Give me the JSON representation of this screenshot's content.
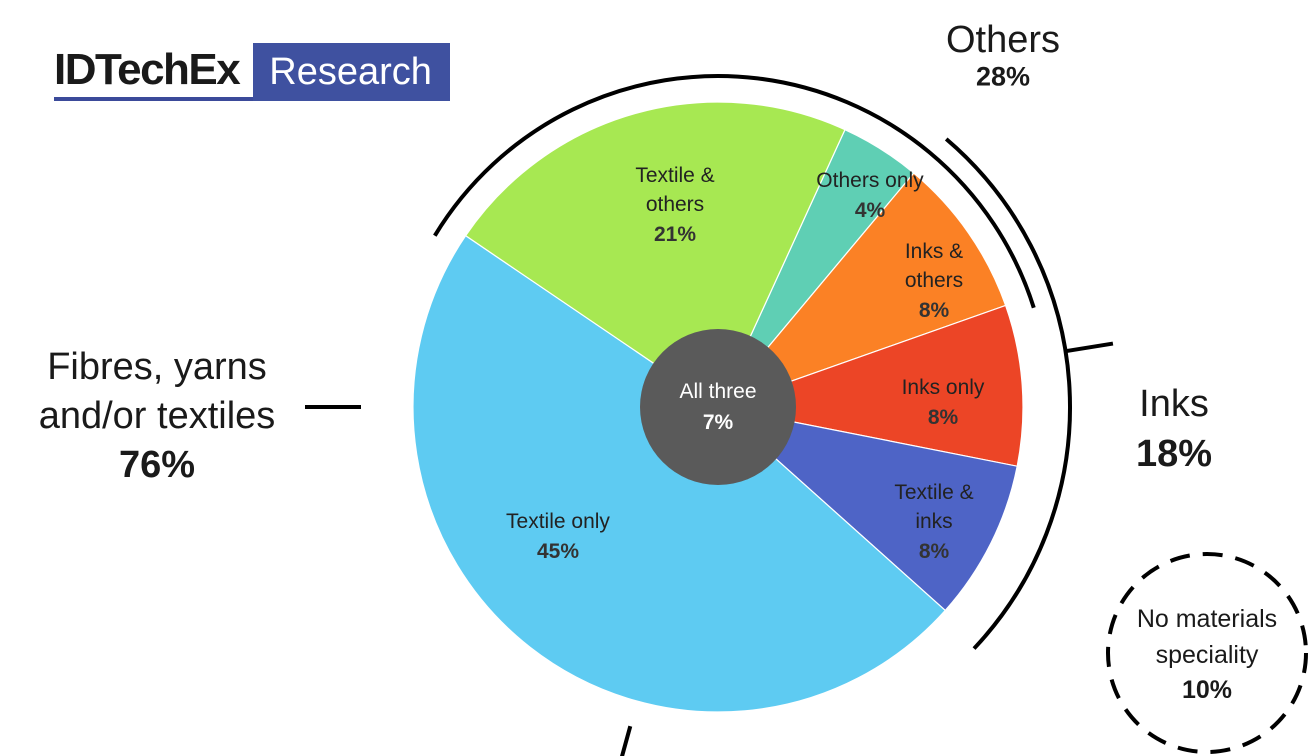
{
  "brand": {
    "name": "IDTechEx",
    "tag": "Research"
  },
  "chart_data": {
    "type": "pie",
    "slices": [
      {
        "label": "Textile only",
        "value": 45,
        "display": "45%",
        "color": "#5ecbf2"
      },
      {
        "label": "Textile & others",
        "value": 21,
        "display": "21%",
        "color": "#a7e852"
      },
      {
        "label": "Others only",
        "value": 4,
        "display": "4%",
        "color": "#5fcfb4"
      },
      {
        "label": "Inks & others",
        "value": 8,
        "display": "8%",
        "color": "#fb8125"
      },
      {
        "label": "Inks only",
        "value": 8,
        "display": "8%",
        "color": "#ec4526"
      },
      {
        "label": "Textile & inks",
        "value": 8,
        "display": "8%",
        "color": "#4e64c6"
      }
    ],
    "center": {
      "label": "All three",
      "value": 7,
      "display": "7%",
      "color": "#5a5a5a"
    },
    "groups": [
      {
        "label": "Others",
        "display": "28%"
      },
      {
        "label": "Inks",
        "display": "18%"
      },
      {
        "label": "Fibres, yarns\nand/or textiles",
        "display": "76%"
      }
    ],
    "no_speciality": {
      "label": "No materials\nspeciality",
      "display": "10%"
    }
  }
}
